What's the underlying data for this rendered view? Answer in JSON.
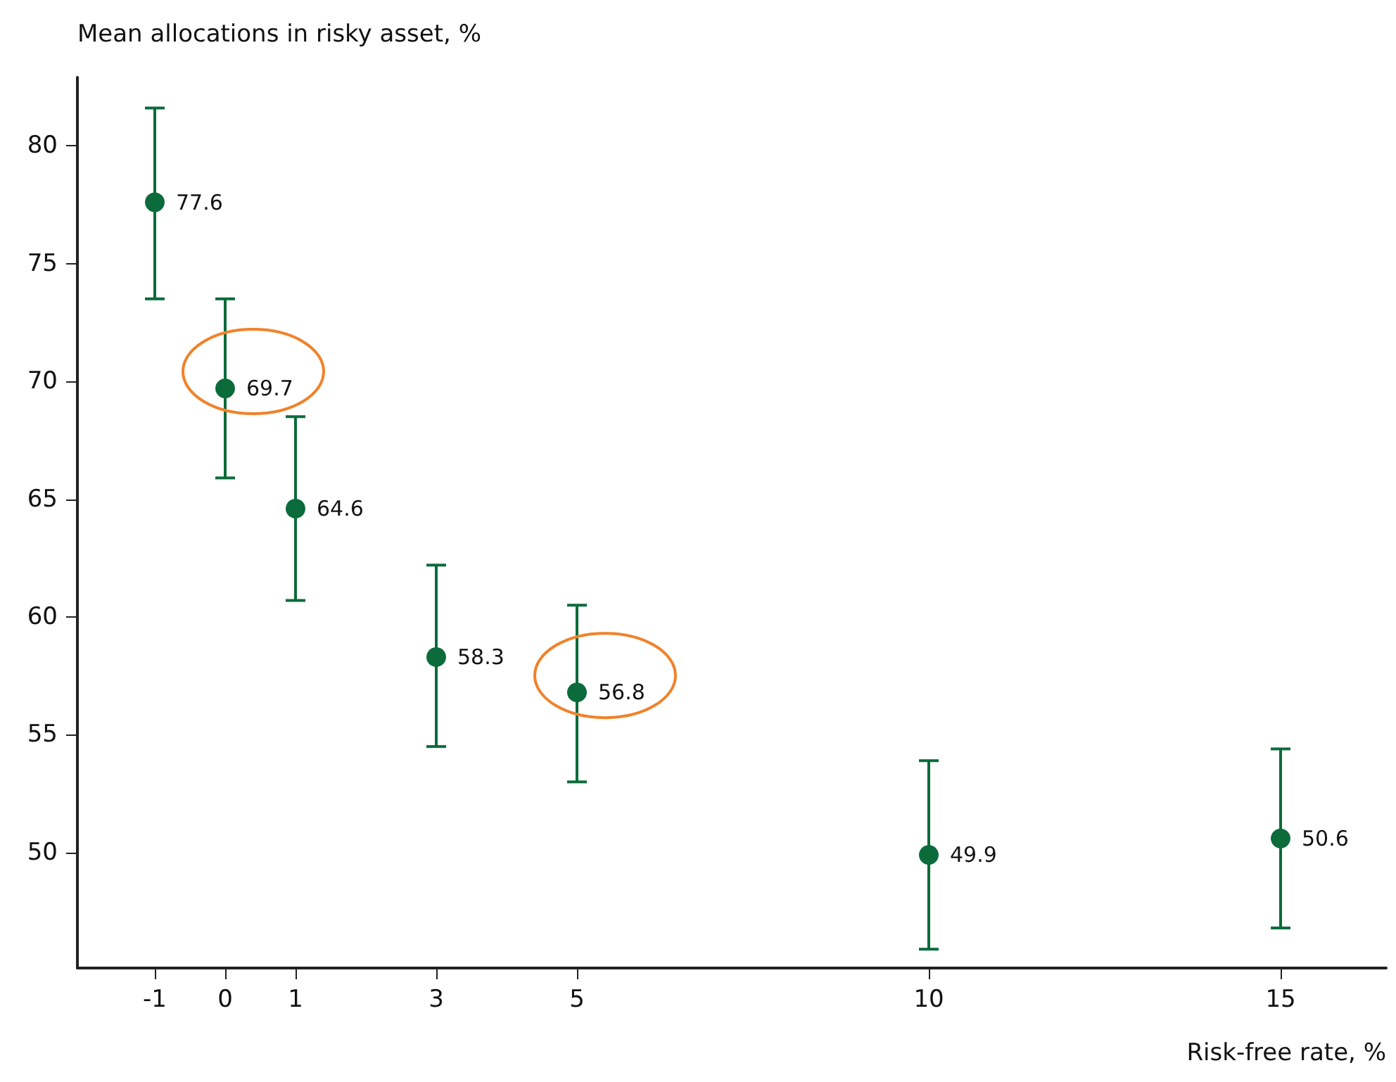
{
  "chart_data": {
    "type": "scatter",
    "xlabel": "Risk-free rate, %",
    "ylabel": "Mean allocations in risky asset, %",
    "x": [
      -1,
      0,
      1,
      3,
      5,
      10,
      15
    ],
    "values": [
      77.6,
      69.7,
      64.6,
      58.3,
      56.8,
      49.9,
      50.6
    ],
    "errors": [
      [
        73.5,
        81.6
      ],
      [
        65.9,
        73.5
      ],
      [
        60.7,
        68.5
      ],
      [
        54.5,
        62.2
      ],
      [
        53.0,
        60.5
      ],
      [
        45.9,
        53.9
      ],
      [
        46.8,
        54.4
      ]
    ],
    "color": "#0b6b3a",
    "marker": "circle",
    "data_labels": true,
    "xlim": [
      -2.1,
      16.5
    ],
    "xticks": [
      -1,
      0,
      1,
      3,
      5,
      10,
      15
    ],
    "ylim": [
      45.1,
      82.9
    ],
    "yticks": [
      50,
      55,
      60,
      65,
      70,
      75,
      80
    ]
  }
}
